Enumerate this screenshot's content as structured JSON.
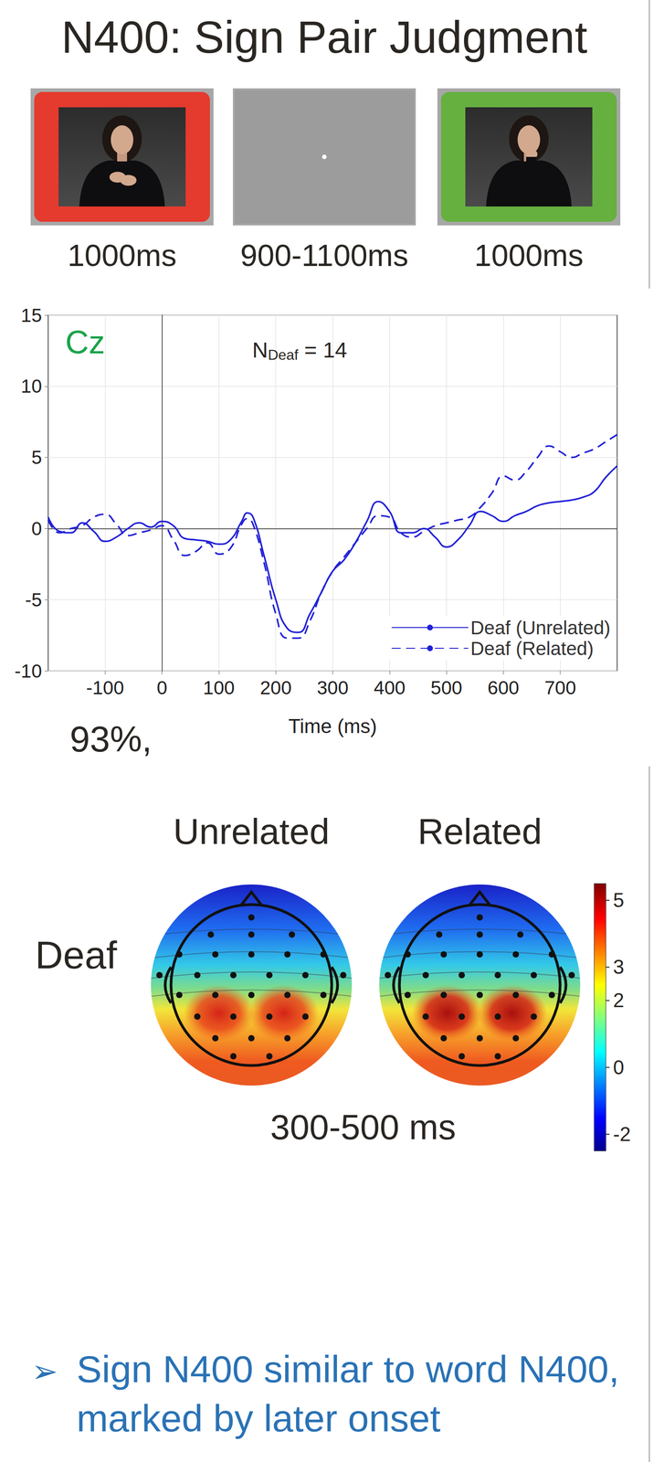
{
  "title": "N400: Sign Pair Judgment",
  "stimulus_sequence": [
    {
      "duration": "1000ms"
    },
    {
      "duration": "900-1100ms"
    },
    {
      "duration": "1000ms"
    }
  ],
  "chart_data": {
    "type": "line",
    "channel": "Cz",
    "sample_label": {
      "main": "N",
      "sub": "Deaf",
      "rest": " = 14"
    },
    "note": "93%,",
    "x_label": "Time (ms)",
    "xlim": [
      -200,
      800
    ],
    "xticks": [
      -100,
      0,
      100,
      200,
      300,
      400,
      500,
      600,
      700
    ],
    "ylim": [
      -10,
      15
    ],
    "yticks": [
      -10,
      -5,
      0,
      5,
      10,
      15
    ],
    "grid": true,
    "legend": "lower right",
    "x": [
      -200,
      -180,
      -160,
      -140,
      -120,
      -100,
      -80,
      -60,
      -40,
      -20,
      0,
      20,
      40,
      60,
      80,
      100,
      120,
      140,
      150,
      160,
      180,
      200,
      220,
      240,
      260,
      280,
      300,
      320,
      340,
      360,
      380,
      400,
      420,
      440,
      460,
      480,
      500,
      520,
      540,
      560,
      580,
      600,
      620,
      640,
      660,
      680,
      700,
      720,
      740,
      760,
      780,
      800
    ],
    "series": [
      {
        "name": "Deaf (Unrelated)",
        "color": "#2020d8",
        "line_style": "solid",
        "values": [
          0.8,
          -0.2,
          -0.3,
          0.4,
          -0.2,
          -0.9,
          -0.6,
          0.0,
          0.4,
          0.1,
          0.5,
          0.2,
          -0.7,
          -0.8,
          -0.9,
          -1.1,
          -0.8,
          0.5,
          1.1,
          0.8,
          -2.0,
          -5.0,
          -7.0,
          -7.3,
          -6.0,
          -4.5,
          -3.0,
          -2.2,
          -1.0,
          0.5,
          1.9,
          1.2,
          -0.3,
          -0.3,
          0.0,
          -0.6,
          -1.3,
          -0.8,
          0.2,
          1.2,
          0.9,
          0.5,
          0.9,
          1.2,
          1.6,
          1.8,
          1.9,
          2.0,
          2.2,
          2.6,
          3.6,
          4.4
        ]
      },
      {
        "name": "Deaf (Related)",
        "color": "#2020d8",
        "line_style": "dashed",
        "values": [
          0.6,
          -0.3,
          0.0,
          0.2,
          0.8,
          1.0,
          0.3,
          -0.5,
          -0.3,
          -0.1,
          0.2,
          -0.8,
          -1.9,
          -1.6,
          -1.0,
          -1.8,
          -1.4,
          0.3,
          0.7,
          0.3,
          -2.5,
          -6.0,
          -7.7,
          -7.7,
          -6.5,
          -4.5,
          -3.0,
          -2.0,
          -1.0,
          0.0,
          0.9,
          0.8,
          -0.3,
          -0.6,
          -0.2,
          0.2,
          0.4,
          0.6,
          0.8,
          1.5,
          2.5,
          3.7,
          3.4,
          4.0,
          5.0,
          5.8,
          5.4,
          5.0,
          5.3,
          5.6,
          6.1,
          6.6
        ]
      }
    ]
  },
  "topomaps": {
    "row_label": "Deaf",
    "columns": [
      "Unrelated",
      "Related"
    ],
    "window": "300-500 ms",
    "colorbar": {
      "range": [
        -2.5,
        5.5
      ],
      "ticks": [
        -2,
        0,
        2,
        3,
        5
      ]
    }
  },
  "conclusion": {
    "bullet": "➢",
    "text": "Sign N400 similar to word N400, marked by later onset"
  }
}
